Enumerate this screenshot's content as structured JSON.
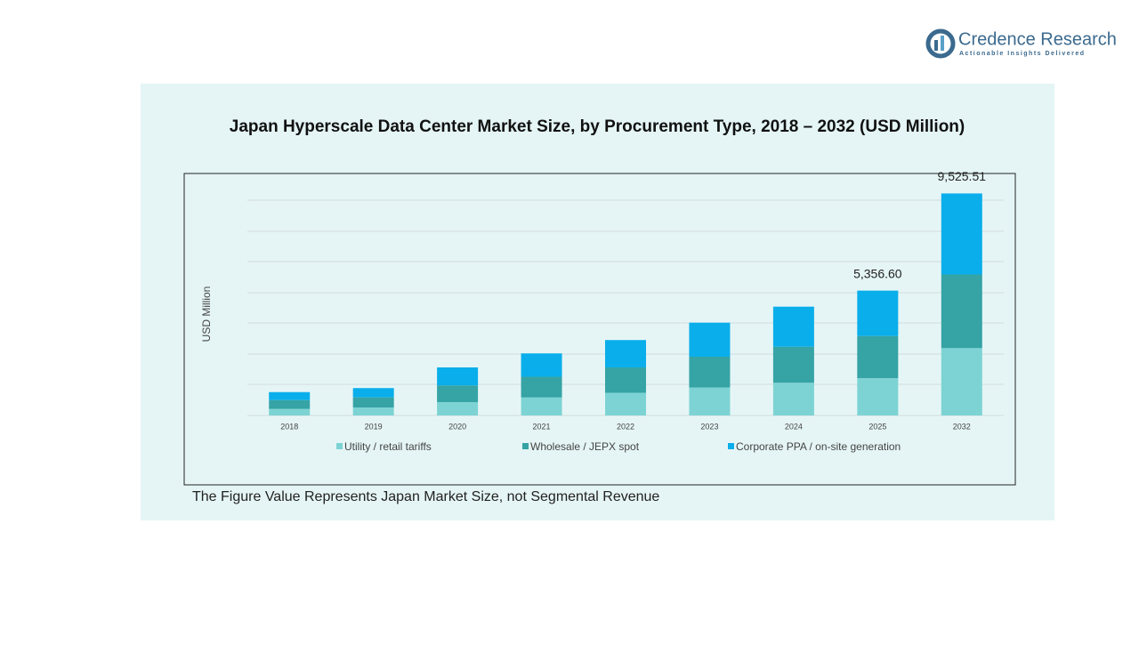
{
  "brand": {
    "name": "Credence Research",
    "tagline": "Actionable Insights Delivered"
  },
  "chart_data": {
    "type": "bar",
    "stacked": true,
    "title": "Japan Hyperscale Data Center Market Size, by Procurement Type, 2018 – 2032 (USD Million)",
    "y_label": "USD Million",
    "categories": [
      "2018",
      "2019",
      "2020",
      "2021",
      "2022",
      "2023",
      "2024",
      "2025",
      "2032"
    ],
    "series": [
      {
        "name": "Utility / retail tariffs",
        "color": "#7dd3d3",
        "values": [
          286,
          344,
          573,
          773,
          974,
          1203,
          1403,
          1603.9,
          2889.5
        ]
      },
      {
        "name": "Wholesale / JEPX spot",
        "color": "#36a3a5",
        "values": [
          372,
          430,
          716,
          888,
          1088,
          1317,
          1547,
          1804.3,
          3160.1
        ]
      },
      {
        "name": "Corporate PPA / on-site generation",
        "color": "#0aaeea",
        "values": [
          344,
          401,
          773,
          1002,
          1174,
          1461,
          1718,
          1948.4,
          3475.91
        ]
      }
    ],
    "totals": [
      null,
      null,
      null,
      null,
      null,
      null,
      null,
      5356.6,
      9525.51
    ],
    "total_labels": [
      null,
      null,
      null,
      null,
      null,
      null,
      null,
      "5,356.60",
      "9,525.51"
    ],
    "ylim": [
      0,
      10000
    ],
    "note": "The Figure Value Represents Japan Market Size, not Segmental Revenue"
  }
}
